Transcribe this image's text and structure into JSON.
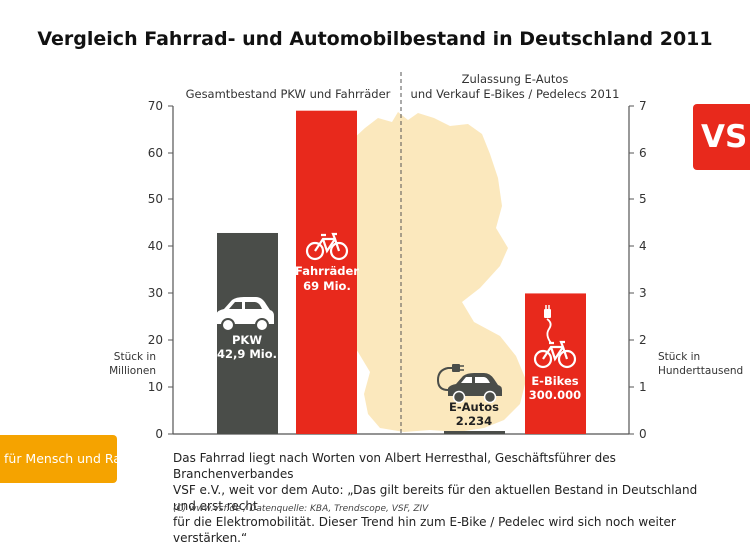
{
  "title": "Vergleich Fahrrad- und Automobilbestand in Deutschland 2011",
  "chart_data": [
    {
      "type": "bar",
      "title": "Gesamtbestand PKW und Fahrräder",
      "ylabel": "Stück in Millionen",
      "ylim": [
        0,
        70
      ],
      "yticks": [
        0,
        10,
        20,
        30,
        40,
        50,
        60,
        70
      ],
      "categories": [
        "PKW",
        "Fahrräder"
      ],
      "values": [
        42.9,
        69
      ],
      "data_labels": [
        "42,9 Mio.",
        "69 Mio."
      ],
      "colors": [
        "#4a4d49",
        "#e8291c"
      ]
    },
    {
      "type": "bar",
      "title": "Zulassung E-Autos und Verkauf E-Bikes / Pedelecs 2011",
      "ylabel": "Stück in Hunderttausend",
      "ylim": [
        0,
        7
      ],
      "yticks": [
        0,
        1,
        2,
        3,
        4,
        5,
        6,
        7
      ],
      "categories": [
        "E-Autos",
        "E-Bikes"
      ],
      "values": [
        0.02234,
        3
      ],
      "data_labels": [
        "2.234",
        "300.000"
      ],
      "colors": [
        "#4a4d49",
        "#e8291c"
      ]
    }
  ],
  "left_subtitle": "Gesamtbestand PKW und Fahrräder",
  "right_subtitle_line1": "Zulassung E-Autos",
  "right_subtitle_line2": "und Verkauf E-Bikes / Pedelecs 2011",
  "left_unit_line1": "Stück in",
  "left_unit_line2": "Millionen",
  "right_unit_line1": "Stück in",
  "right_unit_line2": "Hunderttausend",
  "left_ticks": [
    "0",
    "10",
    "20",
    "30",
    "40",
    "50",
    "60",
    "70"
  ],
  "right_ticks": [
    "0",
    "1",
    "2",
    "3",
    "4",
    "5",
    "6",
    "7"
  ],
  "bars": {
    "pkw_name": "PKW",
    "pkw_value": "42,9 Mio.",
    "fahrrad_name": "Fahrräder",
    "fahrrad_value": "69 Mio.",
    "eauto_name": "E-Autos",
    "eauto_value": "2.234",
    "ebike_name": "E-Bikes",
    "ebike_value": "300.000"
  },
  "logo_text": "VSF",
  "slogan": "für Mensch und Rad",
  "quote_line1": "Das Fahrrad liegt nach Worten von Albert Herresthal, Geschäftsführer des Branchenverbandes",
  "quote_line2": "VSF e.V., weit vor dem Auto: „Das gilt bereits für den aktuellen Bestand in Deutschland und erst recht",
  "quote_line3": "für die Elektromobilität. Dieser Trend hin zum E-Bike / Pedelec wird sich noch weiter verstärken.“",
  "source": "(C) www.vsf.de / Datenquelle: KBA, Trendscope, VSF, ZIV",
  "colors": {
    "gray": "#4a4d49",
    "red": "#e8291c",
    "orange": "#f5a300",
    "map": "#fbe8bd"
  }
}
